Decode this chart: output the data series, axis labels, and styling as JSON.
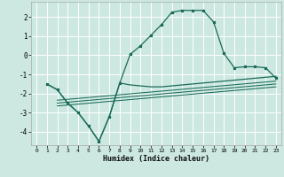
{
  "xlabel": "Humidex (Indice chaleur)",
  "background_color": "#cce8e0",
  "grid_color": "#ffffff",
  "line_color": "#1a6b5a",
  "xlim": [
    -0.5,
    23.5
  ],
  "ylim": [
    -4.7,
    2.8
  ],
  "yticks": [
    -4,
    -3,
    -2,
    -1,
    0,
    1,
    2
  ],
  "xticks": [
    0,
    1,
    2,
    3,
    4,
    5,
    6,
    7,
    8,
    9,
    10,
    11,
    12,
    13,
    14,
    15,
    16,
    17,
    18,
    19,
    20,
    21,
    22,
    23
  ],
  "line1_x": [
    1,
    2,
    3,
    4,
    5,
    6,
    7,
    8,
    9,
    10,
    11,
    12,
    13,
    14,
    15,
    16,
    17,
    18,
    19,
    20,
    21,
    22,
    23
  ],
  "line1_y": [
    -1.5,
    -1.8,
    -2.5,
    -3.0,
    -3.7,
    -4.5,
    -3.2,
    -1.45,
    0.05,
    0.5,
    1.05,
    1.6,
    2.25,
    2.35,
    2.35,
    2.35,
    1.75,
    0.1,
    -0.65,
    -0.6,
    -0.6,
    -0.65,
    -1.2
  ],
  "line2_x": [
    1,
    2,
    3,
    4,
    5,
    6,
    7,
    8,
    9,
    10,
    11,
    12,
    13,
    14,
    15,
    16,
    17,
    18,
    19,
    20,
    21,
    22,
    23
  ],
  "line2_y": [
    -1.5,
    -1.8,
    -2.5,
    -3.0,
    -3.7,
    -4.5,
    -3.2,
    -1.45,
    -1.55,
    -1.6,
    -1.65,
    -1.65,
    -1.6,
    -1.55,
    -1.5,
    -1.45,
    -1.4,
    -1.35,
    -1.3,
    -1.25,
    -1.2,
    -1.15,
    -1.1
  ],
  "line3_x": [
    2,
    23
  ],
  "line3_y": [
    -2.35,
    -1.35
  ],
  "line4_x": [
    2,
    23
  ],
  "line4_y": [
    -2.5,
    -1.5
  ],
  "line5_x": [
    2,
    23
  ],
  "line5_y": [
    -2.65,
    -1.65
  ]
}
